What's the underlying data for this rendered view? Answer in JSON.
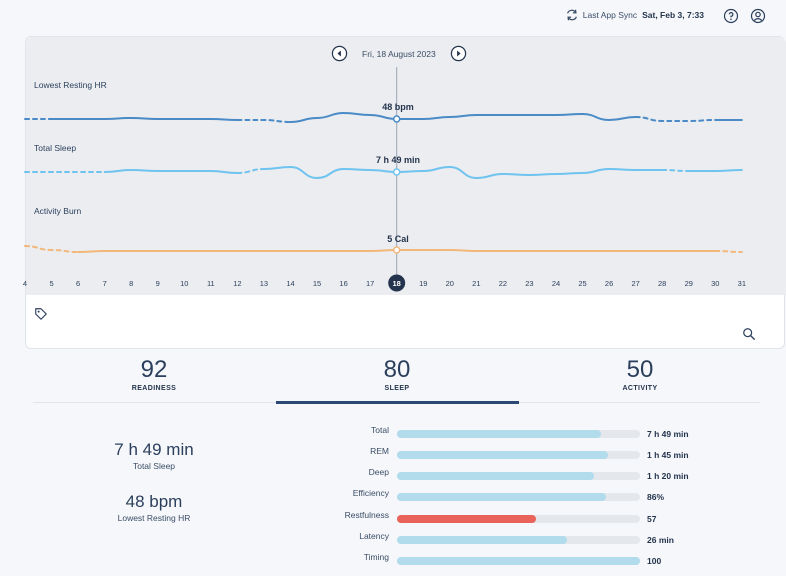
{
  "header": {
    "sync_label": "Last App Sync",
    "sync_time": "Sat, Feb 3, 7:33",
    "icons": [
      "sync-icon",
      "help-icon",
      "account-icon"
    ]
  },
  "trend": {
    "date_label": "Fri, 18 August 2023",
    "selected_day": "18",
    "days": [
      "4",
      "5",
      "6",
      "7",
      "8",
      "9",
      "10",
      "11",
      "12",
      "13",
      "14",
      "15",
      "16",
      "17",
      "18",
      "19",
      "20",
      "21",
      "22",
      "23",
      "24",
      "25",
      "26",
      "27",
      "28",
      "29",
      "30",
      "31"
    ],
    "rows": [
      {
        "label": "Lowest Resting HR",
        "value": "48 bpm",
        "color": "#4a8ac6"
      },
      {
        "label": "Total Sleep",
        "value": "7 h 49 min",
        "color": "#6fc3ef"
      },
      {
        "label": "Activity Burn",
        "value": "5 Cal",
        "color": "#f3b77a"
      }
    ],
    "icons": [
      "tag-icon",
      "search-icon",
      "prev-day-icon",
      "next-day-icon"
    ]
  },
  "tabs": [
    {
      "score": "92",
      "name": "READINESS"
    },
    {
      "score": "80",
      "name": "SLEEP"
    },
    {
      "score": "50",
      "name": "ACTIVITY"
    }
  ],
  "active_tab": "SLEEP",
  "summary": {
    "total_sleep_value": "7 h 49 min",
    "total_sleep_label": "Total Sleep",
    "hr_value": "48 bpm",
    "hr_label": "Lowest Resting HR"
  },
  "contributors": [
    {
      "name": "Total",
      "value": "7 h 49 min",
      "level": 0.84,
      "alert": false
    },
    {
      "name": "REM",
      "value": "1 h 45 min",
      "level": 0.87,
      "alert": false
    },
    {
      "name": "Deep",
      "value": "1 h 20 min",
      "level": 0.81,
      "alert": false
    },
    {
      "name": "Efficiency",
      "value": "86%",
      "level": 0.86,
      "alert": false
    },
    {
      "name": "Restfulness",
      "value": "57",
      "level": 0.57,
      "alert": true
    },
    {
      "name": "Latency",
      "value": "26 min",
      "level": 0.7,
      "alert": false
    },
    {
      "name": "Timing",
      "value": "100",
      "level": 1.0,
      "alert": false
    }
  ],
  "colors": {
    "accent": "#2b4a73",
    "alert": "#e9635a",
    "bar": "#b2dbec",
    "track": "#e4e7eb"
  }
}
